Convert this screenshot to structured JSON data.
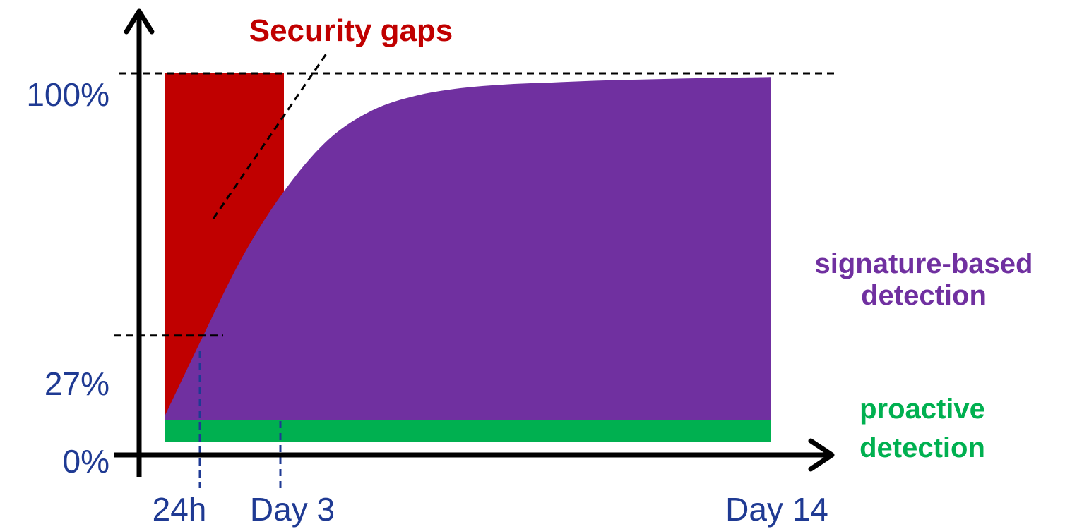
{
  "chart_data": {
    "type": "area",
    "title": "Security gaps",
    "colors": {
      "gap": "#c00000",
      "signature": "#7030a0",
      "proactive": "#00b050",
      "axis_text": "#1f3a93",
      "axis": "#000000"
    },
    "y_ticks": [
      {
        "value": 0,
        "label": "0%"
      },
      {
        "value": 27,
        "label": "27%"
      },
      {
        "value": 100,
        "label": "100%"
      }
    ],
    "x_ticks": [
      {
        "value": 1,
        "label": "24h"
      },
      {
        "value": 3,
        "label": "Day 3"
      },
      {
        "value": 14,
        "label": "Day 14"
      }
    ],
    "ylim": [
      0,
      100
    ],
    "xlim": [
      0,
      14
    ],
    "gap_region": {
      "x_start": 0.25,
      "x_end": 3,
      "y_top": 100
    },
    "series": [
      {
        "name": "signature-based detection",
        "label_lines": [
          "signature-based",
          "detection"
        ],
        "x": [
          0.25,
          1,
          2,
          3,
          4,
          5,
          6,
          7,
          8,
          9,
          10,
          11,
          12,
          13,
          14
        ],
        "y": [
          7,
          27,
          50,
          68,
          82,
          90,
          94,
          96,
          97,
          97.5,
          98,
          98.3,
          98.6,
          98.8,
          99
        ]
      },
      {
        "name": "proactive detection",
        "label_lines": [
          "proactive",
          "detection"
        ],
        "x": [
          0.25,
          14
        ],
        "y": [
          6,
          6
        ]
      }
    ],
    "grid": false
  }
}
